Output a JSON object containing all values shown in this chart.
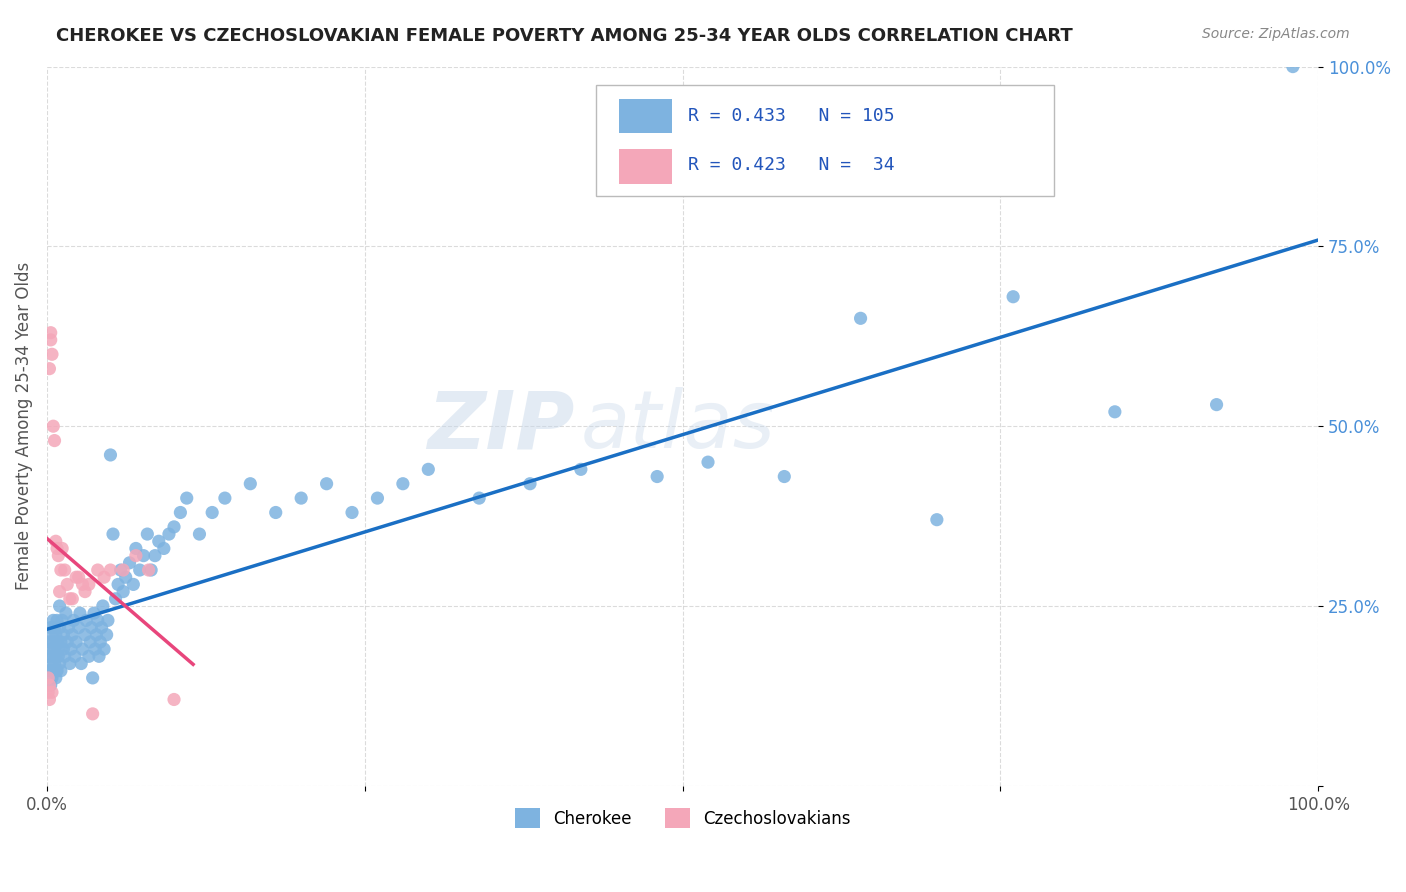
{
  "title": "CHEROKEE VS CZECHOSLOVAKIAN FEMALE POVERTY AMONG 25-34 YEAR OLDS CORRELATION CHART",
  "source": "Source: ZipAtlas.com",
  "ylabel": "Female Poverty Among 25-34 Year Olds",
  "xlim": [
    0,
    1
  ],
  "ylim": [
    0,
    1
  ],
  "cherokee_color": "#7eb3e0",
  "czechoslovakian_color": "#f4a7b9",
  "trend_cherokee_color": "#1a6fc4",
  "trend_czechoslovakian_color": "#e8467c",
  "watermark_zip": "ZIP",
  "watermark_atlas": "atlas",
  "legend_R_cherokee": "0.433",
  "legend_N_cherokee": "105",
  "legend_R_czecho": "0.423",
  "legend_N_czecho": " 34",
  "cherokee_x": [
    0.001,
    0.002,
    0.002,
    0.003,
    0.003,
    0.003,
    0.004,
    0.004,
    0.004,
    0.005,
    0.005,
    0.005,
    0.005,
    0.006,
    0.006,
    0.006,
    0.007,
    0.007,
    0.007,
    0.008,
    0.008,
    0.008,
    0.009,
    0.009,
    0.01,
    0.01,
    0.01,
    0.011,
    0.011,
    0.012,
    0.013,
    0.013,
    0.014,
    0.015,
    0.016,
    0.017,
    0.018,
    0.019,
    0.02,
    0.021,
    0.022,
    0.023,
    0.025,
    0.026,
    0.027,
    0.028,
    0.03,
    0.031,
    0.033,
    0.034,
    0.035,
    0.036,
    0.037,
    0.038,
    0.039,
    0.04,
    0.041,
    0.042,
    0.043,
    0.044,
    0.045,
    0.047,
    0.048,
    0.05,
    0.052,
    0.054,
    0.056,
    0.058,
    0.06,
    0.062,
    0.065,
    0.068,
    0.07,
    0.073,
    0.076,
    0.079,
    0.082,
    0.085,
    0.088,
    0.092,
    0.096,
    0.1,
    0.105,
    0.11,
    0.12,
    0.13,
    0.14,
    0.16,
    0.18,
    0.2,
    0.22,
    0.24,
    0.26,
    0.28,
    0.3,
    0.34,
    0.38,
    0.42,
    0.48,
    0.52,
    0.58,
    0.64,
    0.7,
    0.76,
    0.84,
    0.92,
    0.98
  ],
  "cherokee_y": [
    0.18,
    0.2,
    0.16,
    0.14,
    0.19,
    0.22,
    0.17,
    0.21,
    0.15,
    0.23,
    0.18,
    0.16,
    0.2,
    0.17,
    0.19,
    0.22,
    0.15,
    0.18,
    0.21,
    0.16,
    0.2,
    0.23,
    0.18,
    0.19,
    0.22,
    0.17,
    0.25,
    0.2,
    0.16,
    0.23,
    0.19,
    0.21,
    0.18,
    0.24,
    0.2,
    0.22,
    0.17,
    0.19,
    0.21,
    0.23,
    0.18,
    0.2,
    0.22,
    0.24,
    0.17,
    0.19,
    0.21,
    0.23,
    0.18,
    0.2,
    0.22,
    0.15,
    0.24,
    0.19,
    0.21,
    0.23,
    0.18,
    0.2,
    0.22,
    0.25,
    0.19,
    0.21,
    0.23,
    0.46,
    0.35,
    0.26,
    0.28,
    0.3,
    0.27,
    0.29,
    0.31,
    0.28,
    0.33,
    0.3,
    0.32,
    0.35,
    0.3,
    0.32,
    0.34,
    0.33,
    0.35,
    0.36,
    0.38,
    0.4,
    0.35,
    0.38,
    0.4,
    0.42,
    0.38,
    0.4,
    0.42,
    0.38,
    0.4,
    0.42,
    0.44,
    0.4,
    0.42,
    0.44,
    0.43,
    0.45,
    0.43,
    0.65,
    0.37,
    0.68,
    0.52,
    0.53,
    1.0
  ],
  "czecho_x": [
    0.001,
    0.001,
    0.002,
    0.002,
    0.002,
    0.003,
    0.003,
    0.004,
    0.004,
    0.005,
    0.006,
    0.007,
    0.008,
    0.009,
    0.01,
    0.011,
    0.012,
    0.014,
    0.016,
    0.018,
    0.02,
    0.023,
    0.025,
    0.028,
    0.03,
    0.033,
    0.036,
    0.04,
    0.045,
    0.05,
    0.06,
    0.07,
    0.08,
    0.1
  ],
  "czecho_y": [
    0.13,
    0.15,
    0.12,
    0.14,
    0.58,
    0.63,
    0.62,
    0.6,
    0.13,
    0.5,
    0.48,
    0.34,
    0.33,
    0.32,
    0.27,
    0.3,
    0.33,
    0.3,
    0.28,
    0.26,
    0.26,
    0.29,
    0.29,
    0.28,
    0.27,
    0.28,
    0.1,
    0.3,
    0.29,
    0.3,
    0.3,
    0.32,
    0.3,
    0.12
  ]
}
